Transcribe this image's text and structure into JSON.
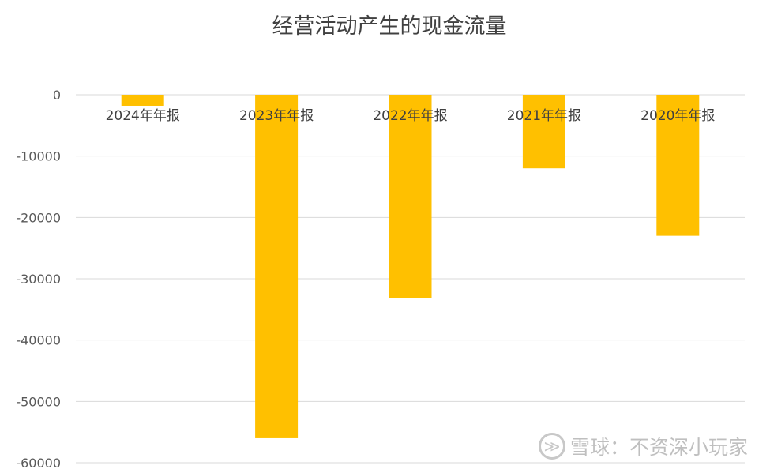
{
  "chart_data": {
    "type": "bar",
    "title": "经营活动产生的现金流量",
    "categories": [
      "2024年年报",
      "2023年年报",
      "2022年年报",
      "2021年年报",
      "2020年年报"
    ],
    "values": [
      -1800,
      -56000,
      -33200,
      -12000,
      -23000
    ],
    "ylim": [
      -60000,
      0
    ],
    "yticks": [
      0,
      -10000,
      -20000,
      -30000,
      -40000,
      -50000,
      -60000
    ],
    "bar_color": "#FFC000",
    "grid": true,
    "legend": "none"
  },
  "watermark": {
    "logo_glyph": "≫",
    "text": "雪球：不资深小玩家"
  }
}
